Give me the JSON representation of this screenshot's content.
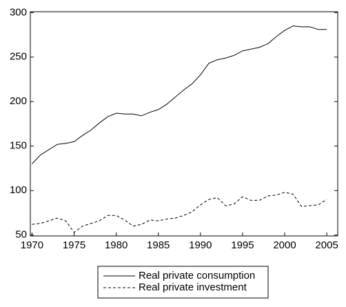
{
  "chart_data": {
    "type": "line",
    "x": [
      1970,
      1971,
      1972,
      1973,
      1974,
      1975,
      1976,
      1977,
      1978,
      1979,
      1980,
      1981,
      1982,
      1983,
      1984,
      1985,
      1986,
      1987,
      1988,
      1989,
      1990,
      1991,
      1992,
      1993,
      1994,
      1995,
      1996,
      1997,
      1998,
      1999,
      2000,
      2001,
      2002,
      2003,
      2004,
      2005
    ],
    "series": [
      {
        "name": "Real private consumption",
        "color": "#000000",
        "line_style": "solid",
        "values": [
          130,
          140,
          146,
          152,
          153,
          155,
          162,
          168,
          176,
          183,
          187,
          186,
          186,
          184,
          188,
          191,
          197,
          205,
          213,
          220,
          230,
          243,
          247,
          249,
          252,
          257,
          259,
          261,
          265,
          273,
          280,
          285,
          284,
          284,
          281,
          281
        ]
      },
      {
        "name": "Real private investment",
        "color": "#000000",
        "line_style": "dashed",
        "values": [
          62,
          63,
          66,
          69,
          66,
          53,
          60,
          63,
          66,
          72,
          72,
          67,
          60,
          62,
          67,
          66,
          68,
          69,
          72,
          76,
          84,
          90,
          92,
          83,
          85,
          93,
          89,
          89,
          94,
          95,
          98,
          96,
          82,
          83,
          84,
          90
        ]
      }
    ],
    "xlim": [
      1969.8,
      2006.3
    ],
    "xticks": [
      1970,
      1975,
      1980,
      1985,
      1990,
      1995,
      2000,
      2005
    ],
    "ylim": [
      49,
      301
    ],
    "yticks": [
      50,
      100,
      150,
      200,
      250,
      300
    ],
    "legend": "bottom"
  }
}
